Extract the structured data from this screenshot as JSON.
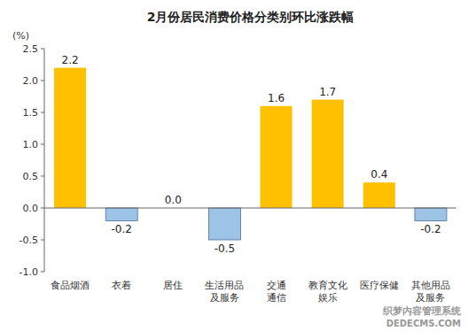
{
  "chart_data": {
    "type": "bar",
    "title": "2月份居民消费价格分类别环比涨跌幅",
    "y_label": "(%)",
    "categories": [
      "食品烟酒",
      "衣着",
      "居住",
      "生活用品\n及服务",
      "交通\n通信",
      "教育文化\n娱乐",
      "医疗保健",
      "其他用品\n及服务"
    ],
    "values": [
      2.2,
      -0.2,
      0.0,
      -0.5,
      1.6,
      1.7,
      0.4,
      -0.2
    ],
    "value_labels": [
      "2.2",
      "-0.2",
      "0.0",
      "-0.5",
      "1.6",
      "1.7",
      "0.4",
      "-0.2"
    ],
    "colors": [
      "#FFC000",
      "#9DC3E6",
      "#FFC000",
      "#9DC3E6",
      "#FFC000",
      "#FFC000",
      "#FFC000",
      "#9DC3E6"
    ],
    "ylim": [
      -1.0,
      2.5
    ],
    "yticks": [
      {
        "value": -1.0,
        "label": "-1.0"
      },
      -0.5,
      {
        "value": 0.0,
        "label": "0.0"
      },
      0.5,
      {
        "value": 1.0,
        "label": "1.0"
      },
      1.5,
      {
        "value": 2.0,
        "label": "2.0"
      },
      2.5
    ],
    "grid": false,
    "data_labels": true,
    "annotations": [
      "织梦内容管理系统",
      "DEDECMS.COM"
    ]
  }
}
